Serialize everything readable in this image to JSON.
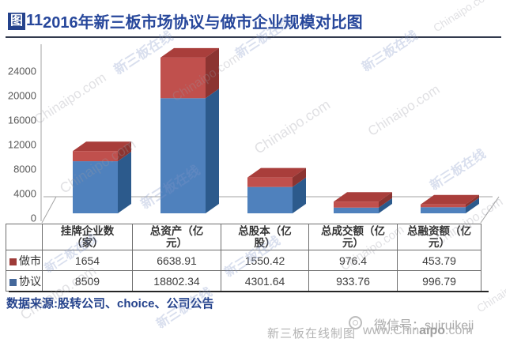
{
  "header": {
    "badge": "图",
    "number": "11",
    "title": "2016年新三板市场协议与做市企业规模对比图",
    "accent_color": "#24428c"
  },
  "chart_data": {
    "type": "bar",
    "variant": "3d-stacked-column",
    "title": "2016年新三板市场协议与做市企业规模对比图",
    "categories": [
      "挂牌企业数（家）",
      "总资产（亿元）",
      "总股本（亿股）",
      "总成交额（亿元）",
      "总融资额（亿元）"
    ],
    "category_headers": [
      "挂牌企业数\n（家）",
      "总资产（亿\n元）",
      "总股本（亿\n股）",
      "总成交额（亿\n元）",
      "总融资额（亿\n元）"
    ],
    "series": [
      {
        "name": "协议",
        "stack_position": "bottom",
        "front_color": "#4f81bd",
        "side_color": "#2c5a8c",
        "top_color": "#3d6ba3",
        "swatch_color": "#44689b",
        "values": [
          8509,
          18802.34,
          4301.64,
          933.76,
          996.79
        ],
        "display": [
          "8509",
          "18802.34",
          "4301.64",
          "933.76",
          "996.79"
        ]
      },
      {
        "name": "做市",
        "stack_position": "top",
        "front_color": "#c0504d",
        "side_color": "#8c3431",
        "top_color": "#a93e3b",
        "swatch_color": "#9e3b38",
        "values": [
          1654,
          6638.91,
          1550.42,
          976.4,
          453.79
        ],
        "display": [
          "1654",
          "6638.91",
          "1550.42",
          "976.4",
          "453.79"
        ]
      }
    ],
    "table_row_order": [
      "做市",
      "协议"
    ],
    "yticks": [
      0,
      4000,
      8000,
      12000,
      16000,
      20000,
      24000
    ],
    "ylim": [
      0,
      26000
    ],
    "grid": false,
    "legend_position": "data-table-left"
  },
  "source_note": "数据来源:股转公司、choice、公司公告",
  "footer": {
    "credit": "新三板在线制图",
    "website": "www.Chinaipo.com",
    "website_bold": "aipo",
    "wechat": "微信号：suiruikeji"
  },
  "watermarks": {
    "cn": "新三板在线",
    "en": "Chinaipo.com"
  }
}
